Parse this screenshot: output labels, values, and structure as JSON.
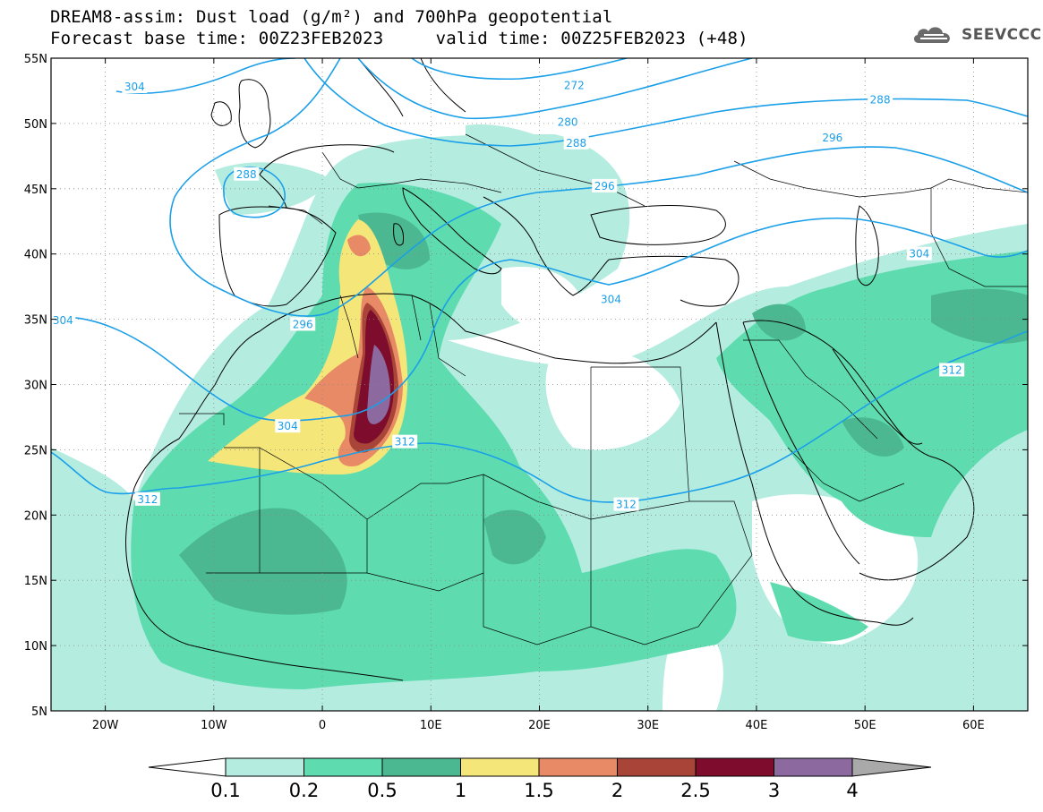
{
  "title": {
    "line1": "DREAM8-assim: Dust load (g/m²) and 700hPa geopotential",
    "line2": "Forecast base time: 00Z23FEB2023     valid time: 00Z25FEB2023 (+48)"
  },
  "logo": {
    "text": "SEEVCCC",
    "icon": "cloud-icon"
  },
  "map": {
    "lon_range": [
      -25,
      65
    ],
    "lat_range": [
      5,
      55
    ],
    "lon_ticks": [
      {
        "value": -20,
        "label": "20W"
      },
      {
        "value": -10,
        "label": "10W"
      },
      {
        "value": 0,
        "label": "0"
      },
      {
        "value": 10,
        "label": "10E"
      },
      {
        "value": 20,
        "label": "20E"
      },
      {
        "value": 30,
        "label": "30E"
      },
      {
        "value": 40,
        "label": "40E"
      },
      {
        "value": 50,
        "label": "50E"
      },
      {
        "value": 60,
        "label": "60E"
      }
    ],
    "lat_ticks": [
      {
        "value": 55,
        "label": "55N"
      },
      {
        "value": 50,
        "label": "50N"
      },
      {
        "value": 45,
        "label": "45N"
      },
      {
        "value": 40,
        "label": "40N"
      },
      {
        "value": 35,
        "label": "35N"
      },
      {
        "value": 30,
        "label": "30N"
      },
      {
        "value": 25,
        "label": "25N"
      },
      {
        "value": 20,
        "label": "20N"
      },
      {
        "value": 15,
        "label": "15N"
      },
      {
        "value": 10,
        "label": "10N"
      },
      {
        "value": 5,
        "label": "5N"
      }
    ],
    "geopotential_labels": [
      {
        "text": "304",
        "lon": -17.3,
        "lat": 52.8
      },
      {
        "text": "272",
        "lon": 23.2,
        "lat": 52.9
      },
      {
        "text": "280",
        "lon": 22.6,
        "lat": 50.1
      },
      {
        "text": "288",
        "lon": 23.4,
        "lat": 48.5
      },
      {
        "text": "288",
        "lon": -7.0,
        "lat": 46.1
      },
      {
        "text": "288",
        "lon": 51.4,
        "lat": 51.8
      },
      {
        "text": "296",
        "lon": 47.0,
        "lat": 48.9
      },
      {
        "text": "296",
        "lon": 26.0,
        "lat": 45.2
      },
      {
        "text": "296",
        "lon": -1.8,
        "lat": 34.6
      },
      {
        "text": "304",
        "lon": -23.9,
        "lat": 34.9
      },
      {
        "text": "304",
        "lon": 55.0,
        "lat": 40.0
      },
      {
        "text": "304",
        "lon": 26.6,
        "lat": 36.5
      },
      {
        "text": "304",
        "lon": -3.2,
        "lat": 26.8
      },
      {
        "text": "312",
        "lon": -16.1,
        "lat": 21.2
      },
      {
        "text": "312",
        "lon": 7.6,
        "lat": 25.6
      },
      {
        "text": "312",
        "lon": 28.0,
        "lat": 20.8
      },
      {
        "text": "312",
        "lon": 58.0,
        "lat": 31.1
      }
    ]
  },
  "colorbar": {
    "labels": [
      "0.1",
      "0.2",
      "0.5",
      "1",
      "1.5",
      "2",
      "2.5",
      "3",
      "4"
    ],
    "colors": [
      "#b4ede0",
      "#5edcb0",
      "#4cb891",
      "#f5e67a",
      "#e88a66",
      "#a84438",
      "#7e0c2c",
      "#8c6aa0"
    ],
    "overflow_color": "#a9a9a9",
    "underflow_color": "#ffffff"
  },
  "colors": {
    "contour": "#1a9fe8",
    "coast": "#000000",
    "grid": "#888888"
  }
}
